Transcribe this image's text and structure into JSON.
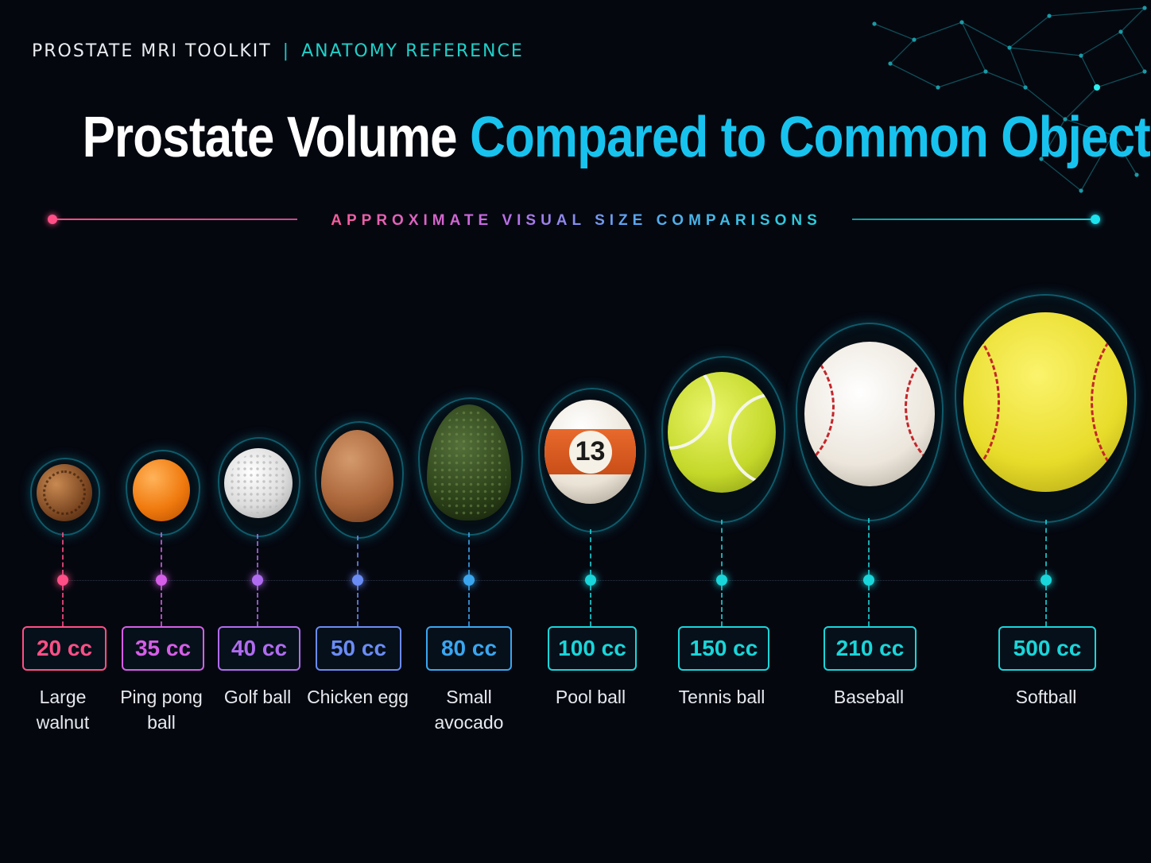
{
  "header": {
    "brand": "PROSTATE MRI TOOLKIT",
    "separator": "|",
    "section": "ANATOMY REFERENCE"
  },
  "title": {
    "part1": "Prostate Volume",
    "part2": "Compared to Common Objects"
  },
  "subtitle": "APPROXIMATE VISUAL SIZE COMPARISONS",
  "colors": {
    "background": "#05070f",
    "title_accent": "#17c3ee",
    "header_accent": "#1fd0c8"
  },
  "items": [
    {
      "volume": "20 cc",
      "label": "Large walnut",
      "object": "walnut",
      "color": "#ff4f86"
    },
    {
      "volume": "35 cc",
      "label": "Ping pong ball",
      "object": "pingpong",
      "color": "#d65ee8"
    },
    {
      "volume": "40 cc",
      "label": "Golf ball",
      "object": "golf",
      "color": "#b06cf0"
    },
    {
      "volume": "50 cc",
      "label": "Chicken egg",
      "object": "egg",
      "color": "#6a8cf5"
    },
    {
      "volume": "80 cc",
      "label": "Small avocado",
      "object": "avocado",
      "color": "#3aa6f0"
    },
    {
      "volume": "100 cc",
      "label": "Pool ball",
      "object": "pool",
      "color": "#19d6da",
      "ball_number": "13"
    },
    {
      "volume": "150 cc",
      "label": "Tennis ball",
      "object": "tennis",
      "color": "#19d6da"
    },
    {
      "volume": "210 cc",
      "label": "Baseball",
      "object": "baseball",
      "color": "#19d6da"
    },
    {
      "volume": "500 cc",
      "label": "Softball",
      "object": "softball",
      "color": "#19d6da"
    }
  ]
}
